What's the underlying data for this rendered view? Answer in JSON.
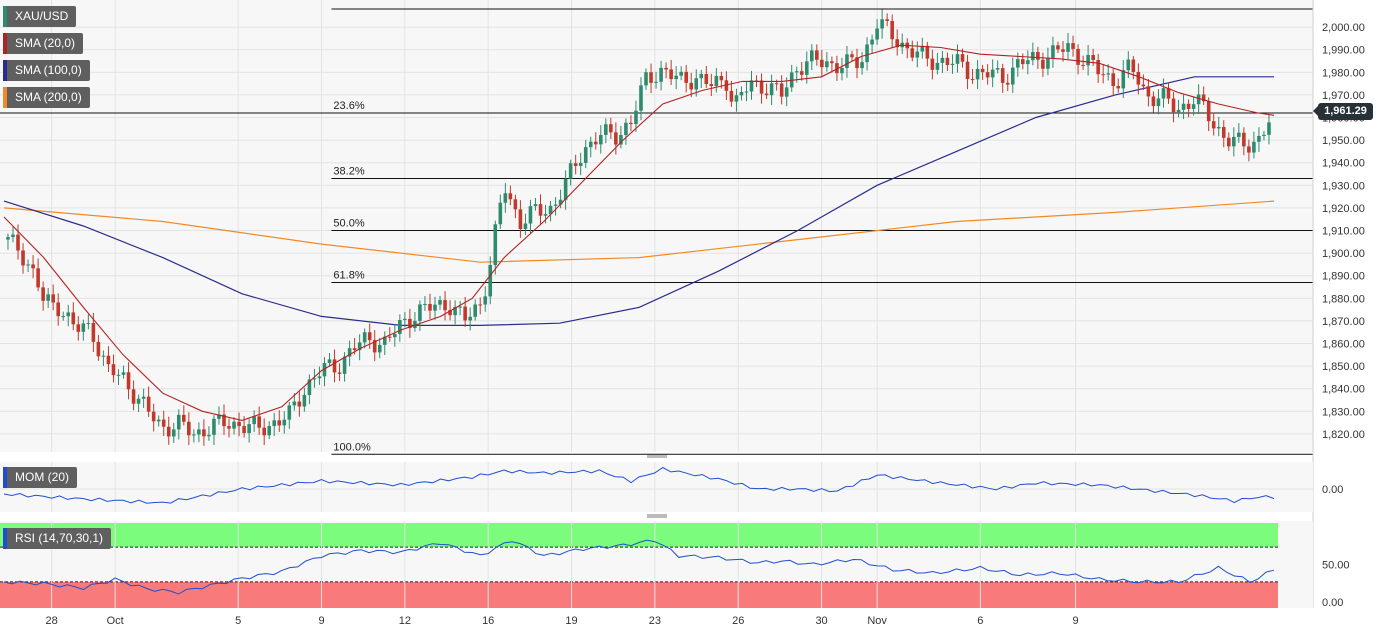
{
  "symbol": "XAU/USD",
  "colors": {
    "up": "#2e8b6e",
    "down": "#c0392b",
    "sma20": "#b22222",
    "sma100": "#2b2b8f",
    "sma200": "#f08a24",
    "momLine": "#1f4fd1",
    "rsiLine": "#1f4fd1",
    "rsiOverbought": "#7cfc7c",
    "rsiOversold": "#f87a7a",
    "priceTag": "#263238"
  },
  "legends": {
    "price": "XAU/USD",
    "sma20": "SMA (20,0)",
    "sma100": "SMA (100,0)",
    "sma200": "SMA (200,0)",
    "mom": "MOM (20)",
    "rsi": "RSI (14,70,30,1)"
  },
  "last_price_label": "1,961.29",
  "chart_data": [
    {
      "type": "candlestick",
      "panel": "price",
      "title": "XAU/USD",
      "ylim": [
        1812,
        2012
      ],
      "y_ticks": [
        1820,
        1830,
        1840,
        1850,
        1860,
        1870,
        1880,
        1890,
        1900,
        1910,
        1920,
        1930,
        1940,
        1950,
        1960,
        1970,
        1980,
        1990,
        2000
      ],
      "y_tick_labels": [
        "1,820.00",
        "1,830.00",
        "1,840.00",
        "1,850.00",
        "1,860.00",
        "1,870.00",
        "1,880.00",
        "1,890.00",
        "1,900.00",
        "1,910.00",
        "1,920.00",
        "1,930.00",
        "1,940.00",
        "1,950.00",
        "1,960.00",
        "1,970.00",
        "1,980.00",
        "1,990.00",
        "2,000.00"
      ],
      "x_tick_labels": [
        "28",
        "Oct",
        "5",
        "9",
        "12",
        "16",
        "19",
        "23",
        "26",
        "30",
        "Nov",
        "6",
        "9"
      ],
      "x_tick_positions": [
        12,
        28,
        59,
        80,
        101,
        122,
        143,
        164,
        185,
        206,
        220,
        246,
        270
      ],
      "num_bars": 280,
      "candle_close_path": [
        [
          0,
          1906
        ],
        [
          4,
          1902
        ],
        [
          8,
          1889
        ],
        [
          10,
          1878
        ],
        [
          14,
          1877
        ],
        [
          18,
          1866
        ],
        [
          22,
          1867
        ],
        [
          26,
          1848
        ],
        [
          30,
          1845
        ],
        [
          36,
          1830
        ],
        [
          40,
          1823
        ],
        [
          44,
          1824
        ],
        [
          48,
          1820
        ],
        [
          52,
          1823
        ],
        [
          56,
          1825
        ],
        [
          60,
          1824
        ],
        [
          64,
          1822
        ],
        [
          68,
          1825
        ],
        [
          72,
          1828
        ],
        [
          76,
          1841
        ],
        [
          80,
          1848
        ],
        [
          84,
          1850
        ],
        [
          88,
          1858
        ],
        [
          92,
          1862
        ],
        [
          96,
          1860
        ],
        [
          100,
          1868
        ],
        [
          104,
          1874
        ],
        [
          108,
          1876
        ],
        [
          112,
          1878
        ],
        [
          116,
          1870
        ],
        [
          120,
          1878
        ],
        [
          122,
          1890
        ],
        [
          126,
          1930
        ],
        [
          130,
          1914
        ],
        [
          134,
          1918
        ],
        [
          138,
          1920
        ],
        [
          142,
          1932
        ],
        [
          146,
          1946
        ],
        [
          150,
          1952
        ],
        [
          154,
          1952
        ],
        [
          158,
          1958
        ],
        [
          162,
          1978
        ],
        [
          166,
          1981
        ],
        [
          170,
          1976
        ],
        [
          174,
          1978
        ],
        [
          178,
          1974
        ],
        [
          182,
          1977
        ],
        [
          184,
          1965
        ],
        [
          188,
          1975
        ],
        [
          192,
          1974
        ],
        [
          196,
          1970
        ],
        [
          200,
          1983
        ],
        [
          204,
          1985
        ],
        [
          208,
          1984
        ],
        [
          212,
          1983
        ],
        [
          216,
          1985
        ],
        [
          220,
          2002
        ],
        [
          224,
          1996
        ],
        [
          228,
          1990
        ],
        [
          232,
          1986
        ],
        [
          236,
          1985
        ],
        [
          240,
          1984
        ],
        [
          244,
          1980
        ],
        [
          248,
          1979
        ],
        [
          252,
          1978
        ],
        [
          256,
          1984
        ],
        [
          260,
          1986
        ],
        [
          264,
          1988
        ],
        [
          268,
          1991
        ],
        [
          272,
          1986
        ],
        [
          276,
          1980
        ],
        [
          280,
          1976
        ],
        [
          284,
          1982
        ],
        [
          288,
          1970
        ],
        [
          292,
          1968
        ],
        [
          296,
          1964
        ],
        [
          300,
          1968
        ],
        [
          304,
          1960
        ],
        [
          308,
          1950
        ],
        [
          312,
          1948
        ],
        [
          316,
          1950
        ],
        [
          320,
          1961
        ]
      ],
      "series": [
        {
          "name": "SMA (20,0)",
          "values": [
            [
              0,
              1916
            ],
            [
              10,
              1898
            ],
            [
              20,
              1876
            ],
            [
              30,
              1855
            ],
            [
              40,
              1838
            ],
            [
              50,
              1830
            ],
            [
              60,
              1826
            ],
            [
              70,
              1832
            ],
            [
              80,
              1848
            ],
            [
              90,
              1858
            ],
            [
              100,
              1866
            ],
            [
              110,
              1872
            ],
            [
              118,
              1880
            ],
            [
              126,
              1898
            ],
            [
              136,
              1914
            ],
            [
              146,
              1932
            ],
            [
              156,
              1950
            ],
            [
              166,
              1966
            ],
            [
              176,
              1972
            ],
            [
              186,
              1976
            ],
            [
              196,
              1976
            ],
            [
              206,
              1978
            ],
            [
              216,
              1987
            ],
            [
              226,
              1992
            ],
            [
              236,
              1991
            ],
            [
              246,
              1988
            ],
            [
              256,
              1987
            ],
            [
              266,
              1986
            ],
            [
              276,
              1984
            ],
            [
              286,
              1978
            ],
            [
              296,
              1971
            ],
            [
              306,
              1966
            ],
            [
              316,
              1962
            ],
            [
              320,
              1961
            ]
          ]
        },
        {
          "name": "SMA (100,0)",
          "values": [
            [
              0,
              1923
            ],
            [
              20,
              1912
            ],
            [
              40,
              1898
            ],
            [
              60,
              1882
            ],
            [
              80,
              1872
            ],
            [
              100,
              1868
            ],
            [
              120,
              1868
            ],
            [
              140,
              1869
            ],
            [
              160,
              1876
            ],
            [
              180,
              1892
            ],
            [
              200,
              1910
            ],
            [
              220,
              1930
            ],
            [
              240,
              1945
            ],
            [
              260,
              1960
            ],
            [
              280,
              1970
            ],
            [
              300,
              1978
            ],
            [
              320,
              1978
            ]
          ]
        },
        {
          "name": "SMA (200,0)",
          "values": [
            [
              0,
              1920
            ],
            [
              40,
              1914
            ],
            [
              80,
              1904
            ],
            [
              120,
              1896
            ],
            [
              160,
              1898
            ],
            [
              200,
              1906
            ],
            [
              240,
              1914
            ],
            [
              280,
              1918
            ],
            [
              320,
              1923
            ]
          ]
        }
      ],
      "fibonacci": [
        {
          "label": "23.6%",
          "value": 1962
        },
        {
          "label": "38.2%",
          "value": 1933
        },
        {
          "label": "50.0%",
          "value": 1910
        },
        {
          "label": "61.8%",
          "value": 1887
        },
        {
          "label": "100.0%",
          "value": 1811
        }
      ],
      "fib_top_level": 2008,
      "last_price": 1961.29
    },
    {
      "type": "line",
      "panel": "momentum",
      "title": "MOM (20)",
      "y_ticks": [
        0
      ],
      "y_tick_labels": [
        "0.00"
      ],
      "values": [
        [
          0,
          -0.25
        ],
        [
          20,
          -0.5
        ],
        [
          40,
          -0.7
        ],
        [
          60,
          0
        ],
        [
          80,
          0.4
        ],
        [
          100,
          0.2
        ],
        [
          118,
          0.6
        ],
        [
          126,
          0.9
        ],
        [
          136,
          0.8
        ],
        [
          150,
          0.9
        ],
        [
          158,
          0.4
        ],
        [
          166,
          1.0
        ],
        [
          180,
          0.5
        ],
        [
          190,
          0
        ],
        [
          200,
          0
        ],
        [
          210,
          -0.1
        ],
        [
          220,
          0.7
        ],
        [
          236,
          0.3
        ],
        [
          250,
          0
        ],
        [
          260,
          0.3
        ],
        [
          276,
          0.2
        ],
        [
          290,
          -0.1
        ],
        [
          300,
          -0.3
        ],
        [
          310,
          -0.6
        ],
        [
          316,
          -0.4
        ],
        [
          320,
          -0.4
        ]
      ]
    },
    {
      "type": "line",
      "panel": "rsi",
      "title": "RSI (14,70,30,1)",
      "ylim": [
        0,
        100
      ],
      "y_ticks": [
        0,
        50
      ],
      "y_tick_labels": [
        "0.00",
        "50.00"
      ],
      "bands": {
        "overbought": 70,
        "oversold": 30
      },
      "values": [
        [
          0,
          30
        ],
        [
          10,
          28
        ],
        [
          20,
          23
        ],
        [
          28,
          33
        ],
        [
          36,
          22
        ],
        [
          44,
          18
        ],
        [
          52,
          26
        ],
        [
          60,
          34
        ],
        [
          70,
          42
        ],
        [
          80,
          60
        ],
        [
          90,
          66
        ],
        [
          100,
          64
        ],
        [
          110,
          75
        ],
        [
          120,
          60
        ],
        [
          128,
          78
        ],
        [
          136,
          60
        ],
        [
          146,
          68
        ],
        [
          156,
          72
        ],
        [
          164,
          78
        ],
        [
          170,
          60
        ],
        [
          180,
          58
        ],
        [
          190,
          52
        ],
        [
          196,
          54
        ],
        [
          204,
          50
        ],
        [
          214,
          56
        ],
        [
          224,
          44
        ],
        [
          234,
          40
        ],
        [
          246,
          46
        ],
        [
          256,
          38
        ],
        [
          266,
          40
        ],
        [
          276,
          33
        ],
        [
          286,
          30
        ],
        [
          296,
          30
        ],
        [
          306,
          46
        ],
        [
          314,
          30
        ],
        [
          320,
          44
        ]
      ]
    }
  ]
}
